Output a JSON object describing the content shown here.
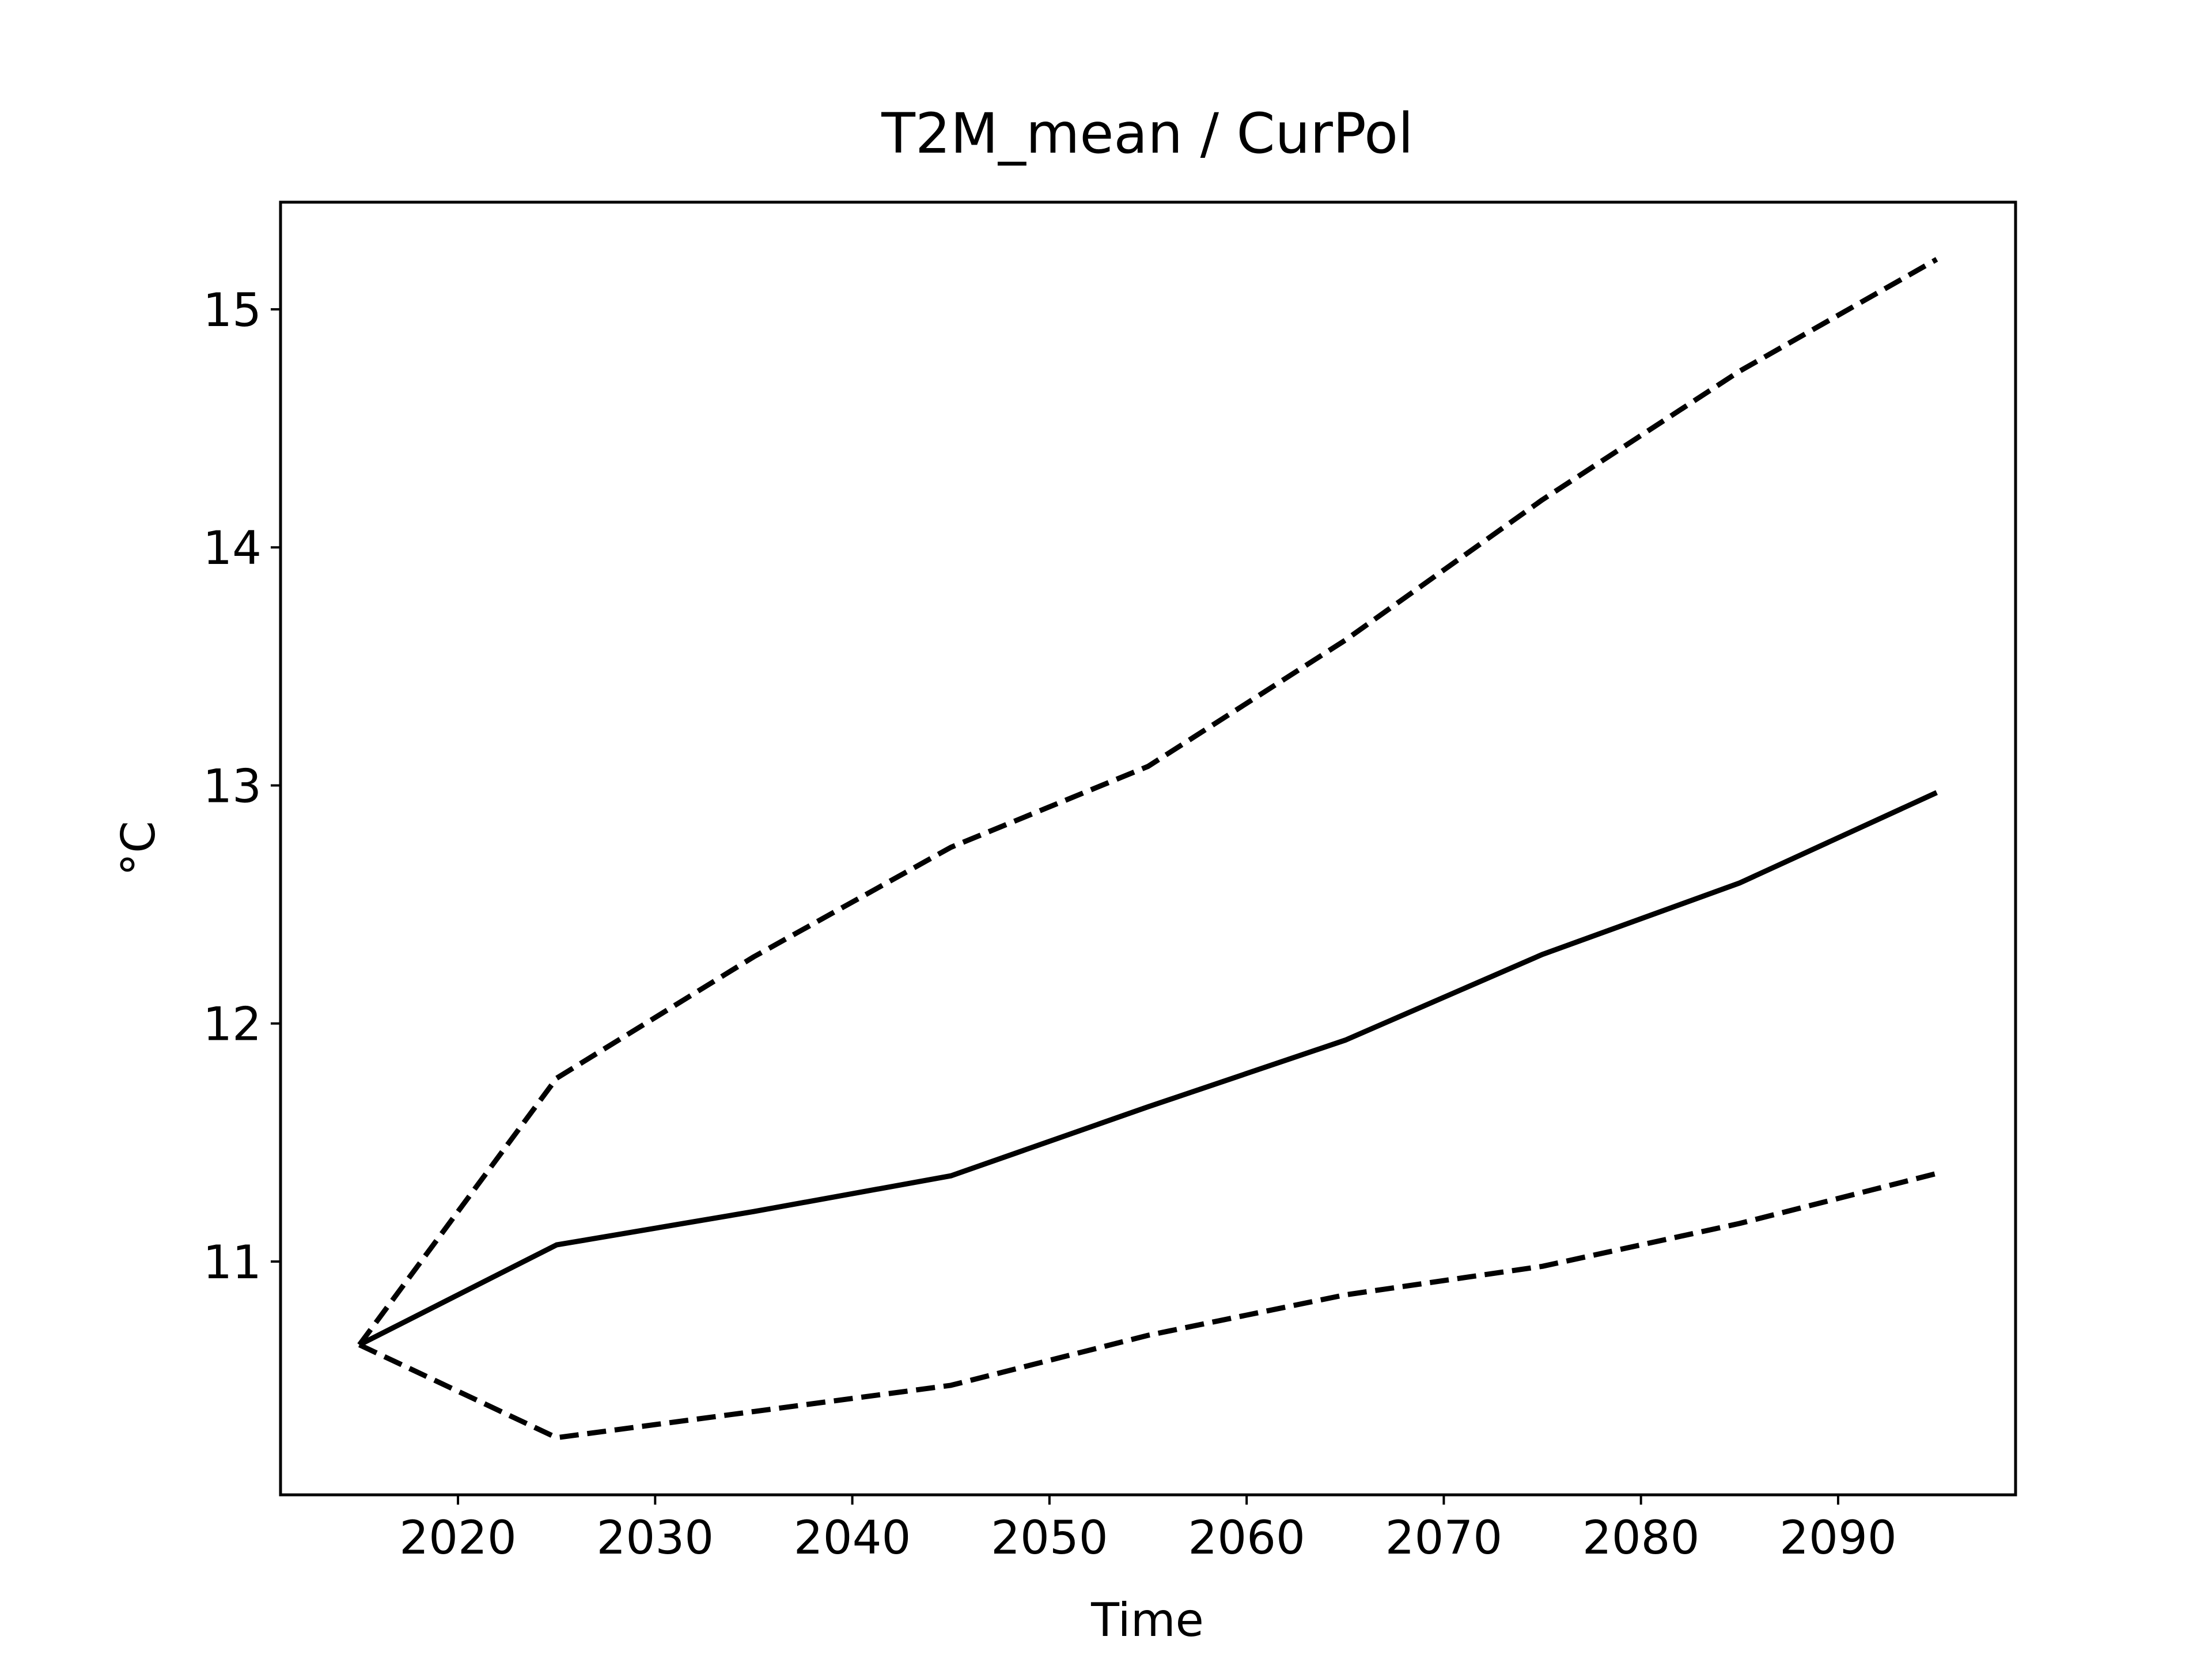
{
  "chart_data": {
    "type": "line",
    "title": "T2M_mean / CurPol",
    "xlabel": "Time",
    "ylabel": "°C",
    "xlim": [
      2011,
      2099
    ],
    "ylim": [
      10.02,
      15.45
    ],
    "xticks": [
      2020,
      2030,
      2040,
      2050,
      2060,
      2070,
      2080,
      2090
    ],
    "yticks": [
      11,
      12,
      13,
      14,
      15
    ],
    "grid": false,
    "legend": "none",
    "x": [
      2015,
      2025,
      2035,
      2045,
      2055,
      2065,
      2075,
      2085,
      2095
    ],
    "series": [
      {
        "values": [
          10.65,
          11.77,
          12.28,
          12.74,
          13.08,
          13.61,
          14.2,
          14.74,
          15.21
        ],
        "style": "dashed",
        "color": "#000000"
      },
      {
        "values": [
          10.65,
          11.07,
          11.21,
          11.36,
          11.65,
          11.93,
          12.29,
          12.59,
          12.97
        ],
        "style": "solid",
        "color": "#000000"
      },
      {
        "values": [
          10.65,
          10.26,
          10.37,
          10.48,
          10.69,
          10.86,
          10.98,
          11.16,
          11.37
        ],
        "style": "dashed",
        "color": "#000000"
      }
    ]
  }
}
